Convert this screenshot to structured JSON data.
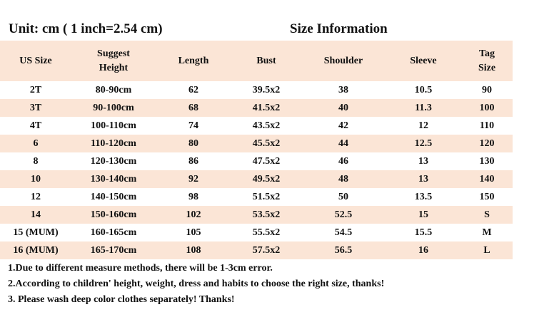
{
  "header": {
    "unit": "Unit: cm ( 1 inch=2.54 cm)",
    "title": "Size Information"
  },
  "table": {
    "columns": [
      "US Size",
      "Suggest Height",
      "Length",
      "Bust",
      "Shoulder",
      "Sleeve",
      "Tag Size"
    ],
    "rows": [
      [
        "2T",
        "80-90cm",
        "62",
        "39.5x2",
        "38",
        "10.5",
        "90"
      ],
      [
        "3T",
        "90-100cm",
        "68",
        "41.5x2",
        "40",
        "11.3",
        "100"
      ],
      [
        "4T",
        "100-110cm",
        "74",
        "43.5x2",
        "42",
        "12",
        "110"
      ],
      [
        "6",
        "110-120cm",
        "80",
        "45.5x2",
        "44",
        "12.5",
        "120"
      ],
      [
        "8",
        "120-130cm",
        "86",
        "47.5x2",
        "46",
        "13",
        "130"
      ],
      [
        "10",
        "130-140cm",
        "92",
        "49.5x2",
        "48",
        "13",
        "140"
      ],
      [
        "12",
        "140-150cm",
        "98",
        "51.5x2",
        "50",
        "13.5",
        "150"
      ],
      [
        "14",
        "150-160cm",
        "102",
        "53.5x2",
        "52.5",
        "15",
        "S"
      ],
      [
        "15 (MUM)",
        "160-165cm",
        "105",
        "55.5x2",
        "54.5",
        "15.5",
        "M"
      ],
      [
        "16 (MUM)",
        "165-170cm",
        "108",
        "57.5x2",
        "56.5",
        "16",
        "L"
      ]
    ]
  },
  "notes": [
    "1.Due to different measure methods, there will be 1-3cm error.",
    "2.According to children' height, weight, dress and habits to choose the right size, thanks!",
    "3. Please wash deep color clothes separately! Thanks!"
  ],
  "colors": {
    "band": "#fbe5d6",
    "text": "#111111"
  }
}
